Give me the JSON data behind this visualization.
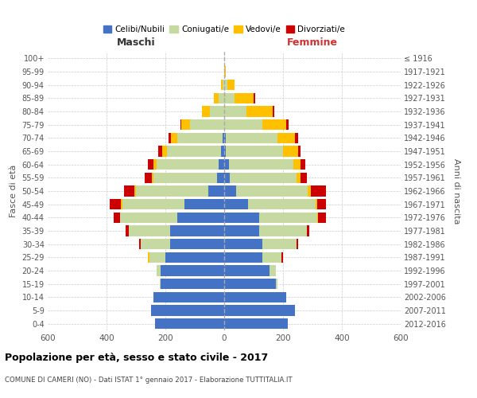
{
  "age_groups": [
    "0-4",
    "5-9",
    "10-14",
    "15-19",
    "20-24",
    "25-29",
    "30-34",
    "35-39",
    "40-44",
    "45-49",
    "50-54",
    "55-59",
    "60-64",
    "65-69",
    "70-74",
    "75-79",
    "80-84",
    "85-89",
    "90-94",
    "95-99",
    "100+"
  ],
  "birth_years": [
    "2012-2016",
    "2007-2011",
    "2002-2006",
    "1997-2001",
    "1992-1996",
    "1987-1991",
    "1982-1986",
    "1977-1981",
    "1972-1976",
    "1967-1971",
    "1962-1966",
    "1957-1961",
    "1952-1956",
    "1947-1951",
    "1942-1946",
    "1937-1941",
    "1932-1936",
    "1927-1931",
    "1922-1926",
    "1917-1921",
    "≤ 1916"
  ],
  "male": {
    "celibi": [
      235,
      250,
      240,
      215,
      215,
      200,
      185,
      185,
      160,
      135,
      55,
      25,
      20,
      10,
      5,
      0,
      0,
      0,
      0,
      0,
      0
    ],
    "coniugati": [
      0,
      0,
      0,
      5,
      15,
      55,
      100,
      140,
      195,
      210,
      245,
      215,
      210,
      185,
      155,
      115,
      50,
      20,
      5,
      0,
      0
    ],
    "vedovi": [
      0,
      0,
      0,
      0,
      0,
      5,
      0,
      0,
      0,
      5,
      5,
      5,
      10,
      15,
      20,
      30,
      25,
      15,
      5,
      0,
      0
    ],
    "divorziati": [
      0,
      0,
      0,
      0,
      0,
      0,
      5,
      10,
      20,
      40,
      35,
      25,
      20,
      15,
      10,
      5,
      0,
      0,
      0,
      0,
      0
    ]
  },
  "female": {
    "nubili": [
      215,
      240,
      210,
      175,
      155,
      130,
      130,
      120,
      120,
      80,
      40,
      20,
      15,
      5,
      5,
      0,
      0,
      0,
      0,
      0,
      0
    ],
    "coniugate": [
      0,
      0,
      0,
      5,
      20,
      65,
      115,
      160,
      195,
      230,
      245,
      225,
      220,
      195,
      175,
      130,
      75,
      35,
      10,
      0,
      0
    ],
    "vedove": [
      0,
      0,
      0,
      0,
      0,
      0,
      0,
      0,
      5,
      5,
      10,
      15,
      25,
      50,
      60,
      80,
      90,
      65,
      25,
      5,
      0
    ],
    "divorziate": [
      0,
      0,
      0,
      0,
      0,
      5,
      5,
      10,
      25,
      30,
      50,
      20,
      15,
      10,
      10,
      10,
      5,
      5,
      0,
      0,
      0
    ]
  },
  "colors": {
    "celibi": "#4472c4",
    "coniugati": "#c5d9a0",
    "vedovi": "#ffc000",
    "divorziati": "#cc0000"
  },
  "legend_labels": [
    "Celibi/Nubili",
    "Coniugati/e",
    "Vedovi/e",
    "Divorziati/e"
  ],
  "title": "Popolazione per età, sesso e stato civile - 2017",
  "subtitle": "COMUNE DI CAMERI (NO) - Dati ISTAT 1° gennaio 2017 - Elaborazione TUTTITALIA.IT",
  "xlabel_left": "Maschi",
  "xlabel_right": "Femmine",
  "ylabel_left": "Fasce di età",
  "ylabel_right": "Anni di nascita",
  "xlim": 600,
  "background_color": "#ffffff",
  "grid_color": "#cccccc"
}
